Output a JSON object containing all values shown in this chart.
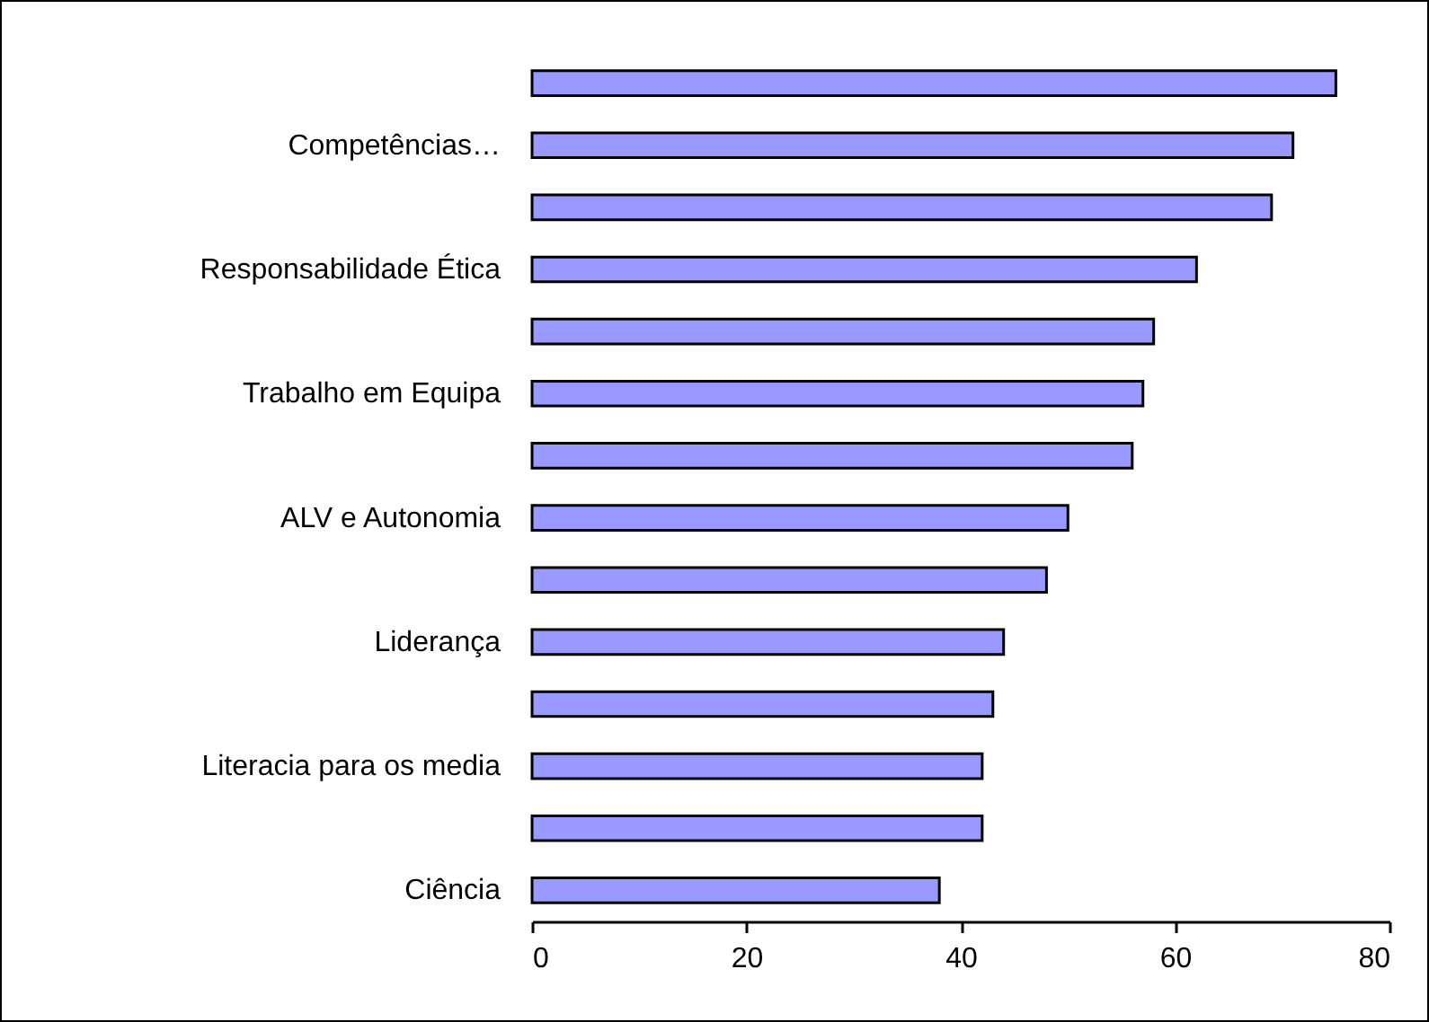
{
  "chart_data": {
    "type": "bar",
    "orientation": "horizontal",
    "categories": [
      null,
      "Competências…",
      null,
      "Responsabilidade Ética",
      null,
      "Trabalho em Equipa",
      null,
      "ALV e Autonomia",
      null,
      "Liderança",
      null,
      "Literacia para os media",
      null,
      "Ciência"
    ],
    "values": [
      75,
      71,
      69,
      62,
      58,
      57,
      56,
      50,
      48,
      44,
      43,
      42,
      42,
      38
    ],
    "color": "#9999ff",
    "xlim": [
      0,
      80
    ],
    "xticks": [
      0,
      20,
      40,
      60,
      80
    ],
    "grid": false
  }
}
